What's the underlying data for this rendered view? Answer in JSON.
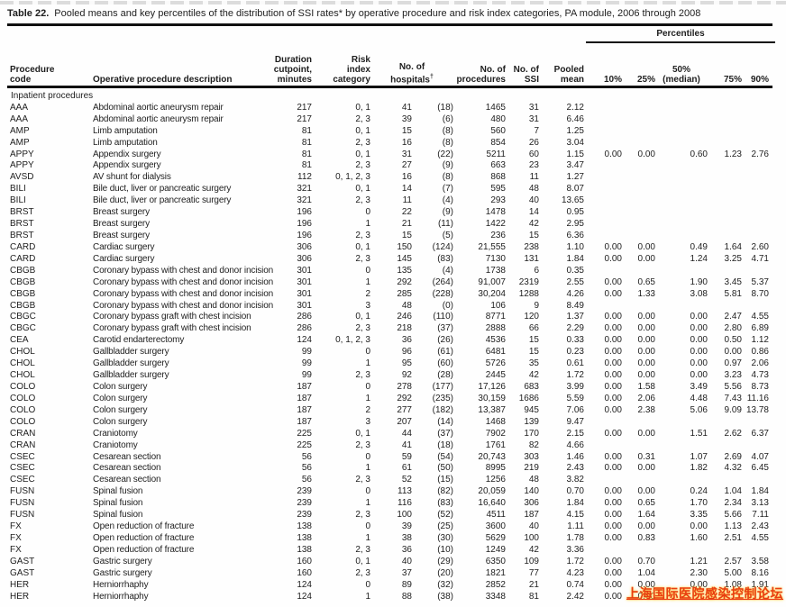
{
  "title": {
    "label": "Table 22.",
    "caption": "Pooled means and key percentiles of the distribution of SSI rates* by operative procedure and risk index categories, PA module, 2006 through 2008"
  },
  "header": {
    "percentiles_spanner": "Percentiles",
    "columns": {
      "code": "Procedure\ncode",
      "desc": "Operative procedure description",
      "dur": "Duration\ncutpoint,\nminutes",
      "risk": "Risk\nindex\ncategory",
      "hosp": "No. of\nhospitals",
      "hosp_sup": "†",
      "proc": "No. of\nprocedures",
      "ssi": "No. of\nSSI",
      "mean": "Pooled\nmean",
      "p10": "10%",
      "p25": "25%",
      "p50": "50%\n(median)",
      "p75": "75%",
      "p90": "90%"
    }
  },
  "rows": [
    {
      "section": "Inpatient procedures"
    },
    [
      "AAA",
      "Abdominal aortic aneurysm repair",
      "217",
      "0, 1",
      "41",
      "(18)",
      "1465",
      "31",
      "2.12",
      "",
      "",
      "",
      "",
      ""
    ],
    [
      "AAA",
      "Abdominal aortic aneurysm repair",
      "217",
      "2, 3",
      "39",
      "(6)",
      "480",
      "31",
      "6.46",
      "",
      "",
      "",
      "",
      ""
    ],
    [
      "AMP",
      "Limb amputation",
      "81",
      "0, 1",
      "15",
      "(8)",
      "560",
      "7",
      "1.25",
      "",
      "",
      "",
      "",
      ""
    ],
    [
      "AMP",
      "Limb amputation",
      "81",
      "2, 3",
      "16",
      "(8)",
      "854",
      "26",
      "3.04",
      "",
      "",
      "",
      "",
      ""
    ],
    [
      "APPY",
      "Appendix surgery",
      "81",
      "0, 1",
      "31",
      "(22)",
      "5211",
      "60",
      "1.15",
      "0.00",
      "0.00",
      "0.60",
      "1.23",
      "2.76"
    ],
    [
      "APPY",
      "Appendix surgery",
      "81",
      "2, 3",
      "27",
      "(9)",
      "663",
      "23",
      "3.47",
      "",
      "",
      "",
      "",
      ""
    ],
    [
      "AVSD",
      "AV shunt for dialysis",
      "112",
      "0, 1, 2, 3",
      "16",
      "(8)",
      "868",
      "11",
      "1.27",
      "",
      "",
      "",
      "",
      ""
    ],
    [
      "BILI",
      "Bile duct, liver or pancreatic surgery",
      "321",
      "0, 1",
      "14",
      "(7)",
      "595",
      "48",
      "8.07",
      "",
      "",
      "",
      "",
      ""
    ],
    [
      "BILI",
      "Bile duct, liver or pancreatic surgery",
      "321",
      "2, 3",
      "11",
      "(4)",
      "293",
      "40",
      "13.65",
      "",
      "",
      "",
      "",
      ""
    ],
    [
      "BRST",
      "Breast surgery",
      "196",
      "0",
      "22",
      "(9)",
      "1478",
      "14",
      "0.95",
      "",
      "",
      "",
      "",
      ""
    ],
    [
      "BRST",
      "Breast surgery",
      "196",
      "1",
      "21",
      "(11)",
      "1422",
      "42",
      "2.95",
      "",
      "",
      "",
      "",
      ""
    ],
    [
      "BRST",
      "Breast surgery",
      "196",
      "2, 3",
      "15",
      "(5)",
      "236",
      "15",
      "6.36",
      "",
      "",
      "",
      "",
      ""
    ],
    [
      "CARD",
      "Cardiac surgery",
      "306",
      "0, 1",
      "150",
      "(124)",
      "21,555",
      "238",
      "1.10",
      "0.00",
      "0.00",
      "0.49",
      "1.64",
      "2.60"
    ],
    [
      "CARD",
      "Cardiac surgery",
      "306",
      "2, 3",
      "145",
      "(83)",
      "7130",
      "131",
      "1.84",
      "0.00",
      "0.00",
      "1.24",
      "3.25",
      "4.71"
    ],
    [
      "CBGB",
      "Coronary bypass with chest and donor incision",
      "301",
      "0",
      "135",
      "(4)",
      "1738",
      "6",
      "0.35",
      "",
      "",
      "",
      "",
      ""
    ],
    [
      "CBGB",
      "Coronary bypass with chest and donor incision",
      "301",
      "1",
      "292",
      "(264)",
      "91,007",
      "2319",
      "2.55",
      "0.00",
      "0.65",
      "1.90",
      "3.45",
      "5.37"
    ],
    [
      "CBGB",
      "Coronary bypass with chest and donor incision",
      "301",
      "2",
      "285",
      "(228)",
      "30,204",
      "1288",
      "4.26",
      "0.00",
      "1.33",
      "3.08",
      "5.81",
      "8.70"
    ],
    [
      "CBGB",
      "Coronary bypass with chest and donor incision",
      "301",
      "3",
      "48",
      "(0)",
      "106",
      "9",
      "8.49",
      "",
      "",
      "",
      "",
      ""
    ],
    [
      "CBGC",
      "Coronary bypass graft with chest incision",
      "286",
      "0, 1",
      "246",
      "(110)",
      "8771",
      "120",
      "1.37",
      "0.00",
      "0.00",
      "0.00",
      "2.47",
      "4.55"
    ],
    [
      "CBGC",
      "Coronary bypass graft with chest incision",
      "286",
      "2, 3",
      "218",
      "(37)",
      "2888",
      "66",
      "2.29",
      "0.00",
      "0.00",
      "0.00",
      "2.80",
      "6.89"
    ],
    [
      "CEA",
      "Carotid endarterectomy",
      "124",
      "0, 1, 2, 3",
      "36",
      "(26)",
      "4536",
      "15",
      "0.33",
      "0.00",
      "0.00",
      "0.00",
      "0.50",
      "1.12"
    ],
    [
      "CHOL",
      "Gallbladder surgery",
      "99",
      "0",
      "96",
      "(61)",
      "6481",
      "15",
      "0.23",
      "0.00",
      "0.00",
      "0.00",
      "0.00",
      "0.86"
    ],
    [
      "CHOL",
      "Gallbladder surgery",
      "99",
      "1",
      "95",
      "(60)",
      "5726",
      "35",
      "0.61",
      "0.00",
      "0.00",
      "0.00",
      "0.97",
      "2.06"
    ],
    [
      "CHOL",
      "Gallbladder surgery",
      "99",
      "2, 3",
      "92",
      "(28)",
      "2445",
      "42",
      "1.72",
      "0.00",
      "0.00",
      "0.00",
      "3.23",
      "4.73"
    ],
    [
      "COLO",
      "Colon surgery",
      "187",
      "0",
      "278",
      "(177)",
      "17,126",
      "683",
      "3.99",
      "0.00",
      "1.58",
      "3.49",
      "5.56",
      "8.73"
    ],
    [
      "COLO",
      "Colon surgery",
      "187",
      "1",
      "292",
      "(235)",
      "30,159",
      "1686",
      "5.59",
      "0.00",
      "2.06",
      "4.48",
      "7.43",
      "11.16"
    ],
    [
      "COLO",
      "Colon surgery",
      "187",
      "2",
      "277",
      "(182)",
      "13,387",
      "945",
      "7.06",
      "0.00",
      "2.38",
      "5.06",
      "9.09",
      "13.78"
    ],
    [
      "COLO",
      "Colon surgery",
      "187",
      "3",
      "207",
      "(14)",
      "1468",
      "139",
      "9.47",
      "",
      "",
      "",
      "",
      ""
    ],
    [
      "CRAN",
      "Craniotomy",
      "225",
      "0, 1",
      "44",
      "(37)",
      "7902",
      "170",
      "2.15",
      "0.00",
      "0.00",
      "1.51",
      "2.62",
      "6.37"
    ],
    [
      "CRAN",
      "Craniotomy",
      "225",
      "2, 3",
      "41",
      "(18)",
      "1761",
      "82",
      "4.66",
      "",
      "",
      "",
      "",
      ""
    ],
    [
      "CSEC",
      "Cesarean section",
      "56",
      "0",
      "59",
      "(54)",
      "20,743",
      "303",
      "1.46",
      "0.00",
      "0.31",
      "1.07",
      "2.69",
      "4.07"
    ],
    [
      "CSEC",
      "Cesarean section",
      "56",
      "1",
      "61",
      "(50)",
      "8995",
      "219",
      "2.43",
      "0.00",
      "0.00",
      "1.82",
      "4.32",
      "6.45"
    ],
    [
      "CSEC",
      "Cesarean section",
      "56",
      "2, 3",
      "52",
      "(15)",
      "1256",
      "48",
      "3.82",
      "",
      "",
      "",
      "",
      ""
    ],
    [
      "FUSN",
      "Spinal fusion",
      "239",
      "0",
      "113",
      "(82)",
      "20,059",
      "140",
      "0.70",
      "0.00",
      "0.00",
      "0.24",
      "1.04",
      "1.84"
    ],
    [
      "FUSN",
      "Spinal fusion",
      "239",
      "1",
      "116",
      "(83)",
      "16,640",
      "306",
      "1.84",
      "0.00",
      "0.65",
      "1.70",
      "2.34",
      "3.13"
    ],
    [
      "FUSN",
      "Spinal fusion",
      "239",
      "2, 3",
      "100",
      "(52)",
      "4511",
      "187",
      "4.15",
      "0.00",
      "1.64",
      "3.35",
      "5.66",
      "7.11"
    ],
    [
      "FX",
      "Open reduction of fracture",
      "138",
      "0",
      "39",
      "(25)",
      "3600",
      "40",
      "1.11",
      "0.00",
      "0.00",
      "0.00",
      "1.13",
      "2.43"
    ],
    [
      "FX",
      "Open reduction of fracture",
      "138",
      "1",
      "38",
      "(30)",
      "5629",
      "100",
      "1.78",
      "0.00",
      "0.83",
      "1.60",
      "2.51",
      "4.55"
    ],
    [
      "FX",
      "Open reduction of fracture",
      "138",
      "2, 3",
      "36",
      "(10)",
      "1249",
      "42",
      "3.36",
      "",
      "",
      "",
      "",
      ""
    ],
    [
      "GAST",
      "Gastric surgery",
      "160",
      "0, 1",
      "40",
      "(29)",
      "6350",
      "109",
      "1.72",
      "0.00",
      "0.70",
      "1.21",
      "2.57",
      "3.58"
    ],
    [
      "GAST",
      "Gastric surgery",
      "160",
      "2, 3",
      "37",
      "(20)",
      "1821",
      "77",
      "4.23",
      "0.00",
      "1.04",
      "2.30",
      "5.00",
      "8.16"
    ],
    [
      "HER",
      "Herniorrhaphy",
      "124",
      "0",
      "89",
      "(32)",
      "2852",
      "21",
      "0.74",
      "0.00",
      "0.00",
      "0.00",
      "1.08",
      "1.91"
    ],
    [
      "HER",
      "Herniorrhaphy",
      "124",
      "1",
      "88",
      "(38)",
      "3348",
      "81",
      "2.42",
      "0.00",
      "0.00",
      "",
      "",
      ""
    ]
  ],
  "watermark": {
    "text": "上海国际医院感染控制论坛",
    "color": "#e83d12"
  }
}
